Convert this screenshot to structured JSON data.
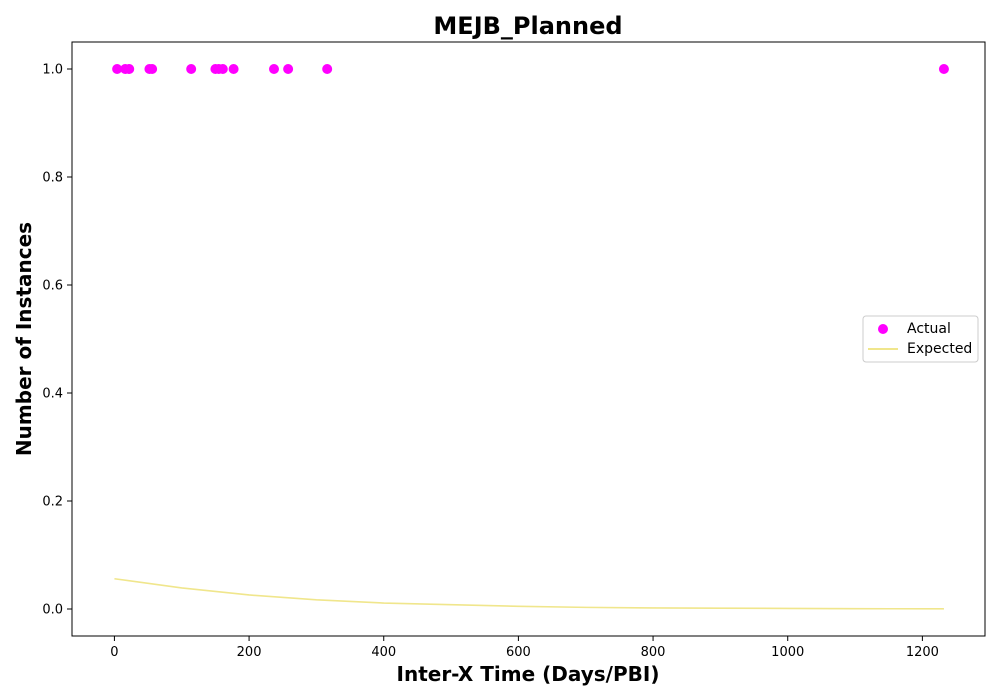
{
  "chart_data": {
    "type": "scatter",
    "title": "MEJB_Planned",
    "xlabel": "Inter-X Time (Days/PBI)",
    "ylabel": "Number of Instances",
    "xlim": [
      -63,
      1293
    ],
    "ylim": [
      -0.05,
      1.05
    ],
    "xticks": [
      0,
      200,
      400,
      600,
      800,
      1000,
      1200
    ],
    "yticks": [
      0.0,
      0.2,
      0.4,
      0.6,
      0.8,
      1.0
    ],
    "xtick_labels": [
      "0",
      "200",
      "400",
      "600",
      "800",
      "1000",
      "1200"
    ],
    "ytick_labels": [
      "0.0",
      "0.2",
      "0.4",
      "0.6",
      "0.8",
      "1.0"
    ],
    "grid": false,
    "legend_position": "center-right",
    "series": [
      {
        "name": "Actual",
        "kind": "scatter",
        "color": "#ff00ff",
        "x": [
          4,
          16,
          22,
          52,
          56,
          114,
          150,
          155,
          161,
          177,
          237,
          258,
          316,
          1232
        ],
        "y": [
          1,
          1,
          1,
          1,
          1,
          1,
          1,
          1,
          1,
          1,
          1,
          1,
          1,
          1
        ]
      },
      {
        "name": "Expected",
        "kind": "line",
        "color": "#f0e68c",
        "x": [
          0,
          100,
          200,
          300,
          400,
          500,
          600,
          700,
          800,
          900,
          1000,
          1100,
          1232
        ],
        "y": [
          0.056,
          0.039,
          0.026,
          0.017,
          0.011,
          0.008,
          0.005,
          0.003,
          0.002,
          0.0015,
          0.001,
          0.0006,
          0.0003
        ]
      }
    ]
  }
}
